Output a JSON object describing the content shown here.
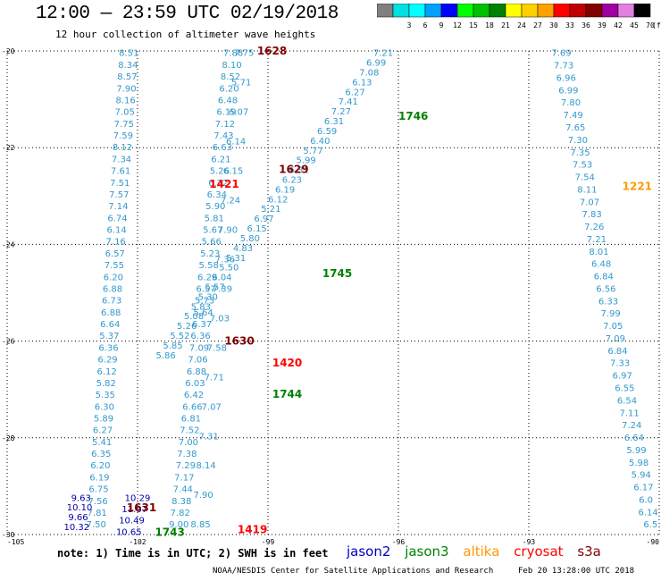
{
  "header": {
    "title": "12:00 — 23:59 UTC 02/19/2018",
    "subtitle": "12 hour collection of altimeter wave heights"
  },
  "colorbar": {
    "unit": "(ft)",
    "bins": [
      {
        "label": "",
        "color": "#808080"
      },
      {
        "label": "3",
        "color": "#00e0e0"
      },
      {
        "label": "6",
        "color": "#00ffff"
      },
      {
        "label": "9",
        "color": "#00a0ff"
      },
      {
        "label": "12",
        "color": "#0000ff"
      },
      {
        "label": "15",
        "color": "#00ff00"
      },
      {
        "label": "18",
        "color": "#00c000"
      },
      {
        "label": "21",
        "color": "#008000"
      },
      {
        "label": "24",
        "color": "#ffff00"
      },
      {
        "label": "27",
        "color": "#ffd000"
      },
      {
        "label": "30",
        "color": "#ffa000"
      },
      {
        "label": "33",
        "color": "#ff0000"
      },
      {
        "label": "36",
        "color": "#c00000"
      },
      {
        "label": "39",
        "color": "#800000"
      },
      {
        "label": "42",
        "color": "#a000a0"
      },
      {
        "label": "45",
        "color": "#e080e0"
      },
      {
        "label": "70",
        "color": "#000000"
      }
    ]
  },
  "footer": {
    "note": "note: 1) Time is in UTC; 2) SWH is in feet",
    "satellites": [
      {
        "name": "jason2",
        "color": "#0000c0"
      },
      {
        "name": "jason3",
        "color": "#008000"
      },
      {
        "name": "altika",
        "color": "#ff9900"
      },
      {
        "name": "cryosat",
        "color": "#ff0000"
      },
      {
        "name": "s3a",
        "color": "#800000"
      }
    ],
    "credit": "NOAA/NESDIS Center for Satellite Applications and Research",
    "timestamp": "Feb 20 13:28:00 UTC 2018"
  },
  "chart_data": {
    "type": "scatter",
    "title": "12:00 — 23:59 UTC 02/19/2018",
    "subtitle": "12 hour collection of altimeter wave heights",
    "xlim": [
      -105,
      -90
    ],
    "ylim": [
      -30,
      -20
    ],
    "x_ticks": [
      -105,
      -102,
      -99,
      -96,
      -93,
      -90
    ],
    "y_ticks": [
      -20,
      -22,
      -24,
      -26,
      -28,
      -30
    ],
    "x_tick_labels": [
      "-105",
      "-102",
      "-99",
      "-96",
      "-93",
      "-90"
    ],
    "y_tick_labels": [
      "-20",
      "-22",
      "-24",
      "-26",
      "-28",
      "-30"
    ],
    "grid": true,
    "tracks": [
      {
        "color": "#3399cc",
        "lon_start": -102.2,
        "lat_start": -20.05,
        "lon_end": -102.95,
        "lat_end": -29.8,
        "values": [
          "8.51",
          "8.34",
          "8.57",
          "7.90",
          "8.16",
          "7.05",
          "7.75",
          "7.59",
          "8.12",
          "7.34",
          "7.61",
          "7.51",
          "7.57",
          "7.14",
          "6.74",
          "6.14",
          "7.16",
          "6.57",
          "7.55",
          "6.20",
          "6.88",
          "6.73",
          "6.88",
          "6.64",
          "5.37",
          "6.36",
          "6.29",
          "6.12",
          "5.82",
          "5.35",
          "6.30",
          "5.89",
          "6.27",
          "5.41",
          "6.35",
          "6.20",
          "6.19",
          "6.75",
          "7.56",
          "7.81",
          "7.50"
        ]
      },
      {
        "color": "#0000aa",
        "lon_start": -103.3,
        "lat_start": -29.25,
        "lon_end": -103.4,
        "lat_end": -29.85,
        "values": [
          "9.63",
          "10.10",
          "9.66",
          "10.32"
        ]
      },
      {
        "color": "#0000aa",
        "lon_start": -102.0,
        "lat_start": -29.25,
        "lon_end": -102.2,
        "lat_end": -29.95,
        "values": [
          "10.29",
          "11.07",
          "10.49",
          "10.65"
        ]
      },
      {
        "color": "#3399cc",
        "lon_start": -99.8,
        "lat_start": -20.05,
        "lon_end": -101.05,
        "lat_end": -29.8,
        "values": [
          "7.88",
          "8.10",
          "8.52",
          "6.20",
          "6.48",
          "6.19",
          "7.12",
          "7.43",
          "6.63",
          "6.21",
          "5.26",
          "6.72",
          "6.34",
          "5.90",
          "5.81",
          "5.67",
          "5.66",
          "5.23",
          "5.58",
          "6.29",
          "6.57",
          "5.73",
          "5.64",
          "6.37",
          "6.36",
          "7.09",
          "7.06",
          "6.88",
          "6.03",
          "6.42",
          "6.66",
          "6.81",
          "7.52",
          "7.00",
          "7.38",
          "7.29",
          "7.17",
          "7.44",
          "8.38",
          "7.82",
          "9.00"
        ]
      },
      {
        "color": "#3399cc",
        "lon_start": -99.55,
        "lat_start": -20.05,
        "lon_end": -100.55,
        "lat_end": -29.8,
        "values": [
          "7.75",
          "5.71",
          "6.07",
          "6.14",
          "6.15",
          "7.24",
          "7.90",
          "7.36",
          "7.39",
          "7.03",
          "7.58",
          "7.71",
          "7.07",
          "7.31",
          "8.14",
          "7.90",
          "8.85"
        ]
      },
      {
        "color": "#3399cc",
        "lon_start": -96.35,
        "lat_start": -20.05,
        "lon_end": -101.35,
        "lat_end": -26.3,
        "values": [
          "7.21",
          "6.99",
          "7.08",
          "6.13",
          "6.27",
          "7.41",
          "7.27",
          "6.31",
          "6.59",
          "6.40",
          "5.77",
          "5.99",
          "6.31",
          "6.23",
          "6.19",
          "6.12",
          "5.21",
          "6.97",
          "6.15",
          "5.80",
          "4.83",
          "5.31",
          "5.50",
          "6.04",
          "5.57",
          "5.30",
          "5.83",
          "5.08",
          "5.26",
          "5.52",
          "5.85",
          "5.86"
        ]
      },
      {
        "color": "#3399cc",
        "lon_start": -92.25,
        "lat_start": -20.05,
        "lon_end": -90.2,
        "lat_end": -29.8,
        "values": [
          "7.69",
          "7.73",
          "6.96",
          "6.99",
          "7.80",
          "7.49",
          "7.65",
          "7.30",
          "7.35",
          "7.53",
          "7.54",
          "8.11",
          "7.07",
          "7.83",
          "7.26",
          "7.21",
          "8.01",
          "6.48",
          "6.84",
          "6.56",
          "6.33",
          "7.99",
          "7.05",
          "7.09",
          "6.84",
          "7.33",
          "6.97",
          "6.55",
          "6.54",
          "7.11",
          "7.24",
          "6.64",
          "5.99",
          "5.98",
          "5.94",
          "6.17",
          "6.0",
          "6.14",
          "6.5"
        ]
      }
    ],
    "time_labels": [
      {
        "text": "1628",
        "lon": -99.25,
        "lat": -20.0,
        "satellite": "s3a",
        "color": "#800000"
      },
      {
        "text": "1629",
        "lon": -98.75,
        "lat": -22.45,
        "satellite": "s3a",
        "color": "#800000"
      },
      {
        "text": "1630",
        "lon": -100.0,
        "lat": -26.0,
        "satellite": "s3a",
        "color": "#800000"
      },
      {
        "text": "1631",
        "lon": -102.25,
        "lat": -29.45,
        "satellite": "s3a",
        "color": "#800000"
      },
      {
        "text": "1421",
        "lon": -100.35,
        "lat": -22.75,
        "satellite": "cryosat",
        "color": "#ff0000"
      },
      {
        "text": "1420",
        "lon": -98.9,
        "lat": -26.45,
        "satellite": "cryosat",
        "color": "#ff0000"
      },
      {
        "text": "1419",
        "lon": -99.7,
        "lat": -29.9,
        "satellite": "cryosat",
        "color": "#ff0000"
      },
      {
        "text": "1746",
        "lon": -96.0,
        "lat": -21.35,
        "satellite": "jason3",
        "color": "#008000"
      },
      {
        "text": "1745",
        "lon": -97.75,
        "lat": -24.6,
        "satellite": "jason3",
        "color": "#008000"
      },
      {
        "text": "1744",
        "lon": -98.9,
        "lat": -27.1,
        "satellite": "jason3",
        "color": "#008000"
      },
      {
        "text": "1743",
        "lon": -101.6,
        "lat": -29.95,
        "satellite": "jason3",
        "color": "#008000"
      },
      {
        "text": "1221",
        "lon": -90.85,
        "lat": -22.8,
        "satellite": "altika",
        "color": "#ff9900"
      },
      {
        "text": "12",
        "lon": -90.0,
        "lat": -26.35,
        "satellite": "altika",
        "color": "#ff9900"
      }
    ]
  }
}
